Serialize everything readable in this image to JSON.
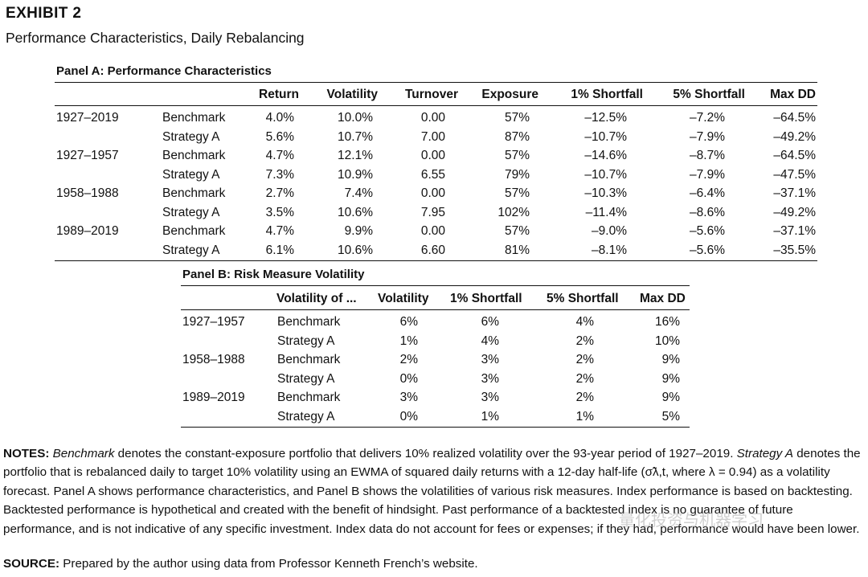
{
  "exhibit": {
    "label": "EXHIBIT 2",
    "title": "Performance Characteristics, Daily Rebalancing"
  },
  "panel_a": {
    "title": "Panel A: Performance Characteristics",
    "headers": [
      "Return",
      "Volatility",
      "Turnover",
      "Exposure",
      "1% Shortfall",
      "5% Shortfall",
      "Max DD"
    ],
    "rows": [
      {
        "period": "1927–2019",
        "name": "Benchmark",
        "values": [
          "4.0%",
          "10.0%",
          "0.00",
          "57%",
          "–12.5%",
          "–7.2%",
          "–64.5%"
        ]
      },
      {
        "period": "",
        "name": "Strategy A",
        "values": [
          "5.6%",
          "10.7%",
          "7.00",
          "87%",
          "–10.7%",
          "–7.9%",
          "–49.2%"
        ]
      },
      {
        "period": "1927–1957",
        "name": "Benchmark",
        "values": [
          "4.7%",
          "12.1%",
          "0.00",
          "57%",
          "–14.6%",
          "–8.7%",
          "–64.5%"
        ]
      },
      {
        "period": "",
        "name": "Strategy A",
        "values": [
          "7.3%",
          "10.9%",
          "6.55",
          "79%",
          "–10.7%",
          "–7.9%",
          "–47.5%"
        ]
      },
      {
        "period": "1958–1988",
        "name": "Benchmark",
        "values": [
          "2.7%",
          "7.4%",
          "0.00",
          "57%",
          "–10.3%",
          "–6.4%",
          "–37.1%"
        ]
      },
      {
        "period": "",
        "name": "Strategy A",
        "values": [
          "3.5%",
          "10.6%",
          "7.95",
          "102%",
          "–11.4%",
          "–8.6%",
          "–49.2%"
        ]
      },
      {
        "period": "1989–2019",
        "name": "Benchmark",
        "values": [
          "4.7%",
          "9.9%",
          "0.00",
          "57%",
          "–9.0%",
          "–5.6%",
          "–37.1%"
        ]
      },
      {
        "period": "",
        "name": "Strategy A",
        "values": [
          "6.1%",
          "10.6%",
          "6.60",
          "81%",
          "–8.1%",
          "–5.6%",
          "–35.5%"
        ]
      }
    ]
  },
  "panel_b": {
    "title": "Panel B: Risk Measure Volatility",
    "headers": [
      "Volatility of ...",
      "Volatility",
      "1% Shortfall",
      "5% Shortfall",
      "Max DD"
    ],
    "rows": [
      {
        "period": "1927–1957",
        "name": "Benchmark",
        "values": [
          "6%",
          "6%",
          "4%",
          "16%"
        ]
      },
      {
        "period": "",
        "name": "Strategy A",
        "values": [
          "1%",
          "4%",
          "2%",
          "10%"
        ]
      },
      {
        "period": "1958–1988",
        "name": "Benchmark",
        "values": [
          "2%",
          "3%",
          "2%",
          "9%"
        ]
      },
      {
        "period": "",
        "name": "Strategy A",
        "values": [
          "0%",
          "3%",
          "2%",
          "9%"
        ]
      },
      {
        "period": "1989–2019",
        "name": "Benchmark",
        "values": [
          "3%",
          "3%",
          "2%",
          "9%"
        ]
      },
      {
        "period": "",
        "name": "Strategy A",
        "values": [
          "0%",
          "1%",
          "1%",
          "5%"
        ]
      }
    ]
  },
  "notes": {
    "label": "NOTES:",
    "segments": [
      {
        "text": " ",
        "italic": false
      },
      {
        "text": "Benchmark",
        "italic": true
      },
      {
        "text": " denotes the constant-exposure portfolio that delivers 10% realized volatility over the 93-year period of 1927–2019. ",
        "italic": false
      },
      {
        "text": "Strategy A",
        "italic": true
      },
      {
        "text": " denotes the portfolio that is rebalanced daily to target 10% volatility using an EWMA of squared daily returns with a 12-day half-life (σ̃λ,t, where λ = 0.94) as a volatility forecast. Panel A shows performance characteristics, and Panel B shows the volatilities of various risk measures. Index performance is based on backtesting. Backtested performance is hypothetical and created with the benefit of hindsight. Past performance of a backtested index is no guarantee of future performance, and is not indicative of any specific investment. Index data do not account for fees or expenses; if they had, performance would have been lower.",
        "italic": false
      }
    ]
  },
  "source": {
    "label": "SOURCE:",
    "text": " Prepared by the author using data from Professor Kenneth French’s website."
  },
  "watermark": "量化投资与机器学习"
}
